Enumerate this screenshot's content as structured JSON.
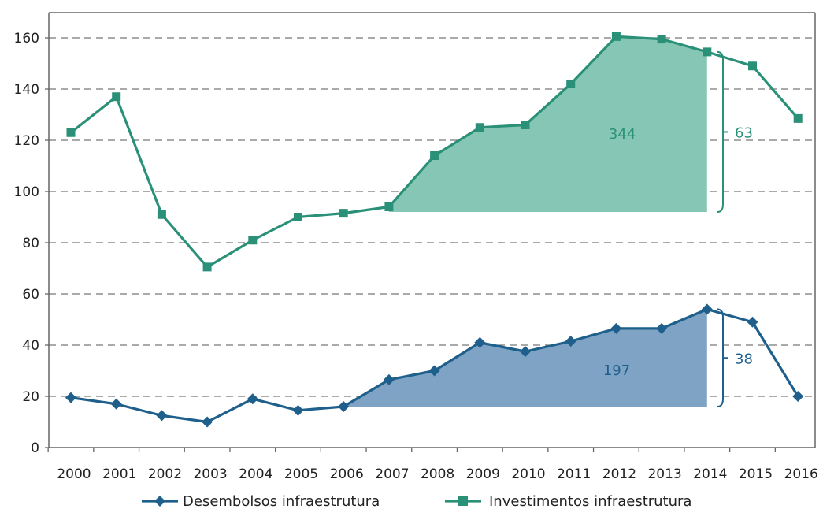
{
  "chart_data": {
    "type": "line",
    "title": "",
    "xlabel": "",
    "ylabel": "",
    "ylim": [
      0,
      160
    ],
    "yticks": [
      0,
      20,
      40,
      60,
      80,
      100,
      120,
      140,
      160
    ],
    "grid": true,
    "legend_position": "bottom",
    "categories": [
      "2000",
      "2001",
      "2002",
      "2003",
      "2004",
      "2005",
      "2006",
      "2007",
      "2008",
      "2009",
      "2010",
      "2011",
      "2012",
      "2013",
      "2014",
      "2015",
      "2016"
    ],
    "series": [
      {
        "name": "Desembolsos infraestrutura",
        "color": "#1f5f8b",
        "marker": "diamond",
        "values": [
          19.5,
          17,
          12.5,
          10,
          19,
          14.5,
          16,
          26.5,
          30,
          41,
          37.5,
          41.5,
          46.5,
          46.5,
          54,
          49,
          20
        ]
      },
      {
        "name": "Investimentos infraestrutura",
        "color": "#2a9178",
        "marker": "square",
        "values": [
          123,
          137,
          91,
          70.5,
          81,
          90,
          91.5,
          94,
          114,
          125,
          126,
          142,
          160.5,
          159.5,
          154.5,
          149,
          128.5
        ]
      }
    ],
    "annotations": [
      {
        "series": 1,
        "text": "344",
        "bracket_text": "63",
        "from": "2007",
        "to": "2014",
        "baseline": 92,
        "fill": "#86c6b4",
        "text_color": "#2a9178"
      },
      {
        "series": 0,
        "text": "197",
        "bracket_text": "38",
        "from": "2006",
        "to": "2014",
        "baseline": 16,
        "fill": "#7ea3c4",
        "text_color": "#1f5f8b"
      }
    ]
  }
}
